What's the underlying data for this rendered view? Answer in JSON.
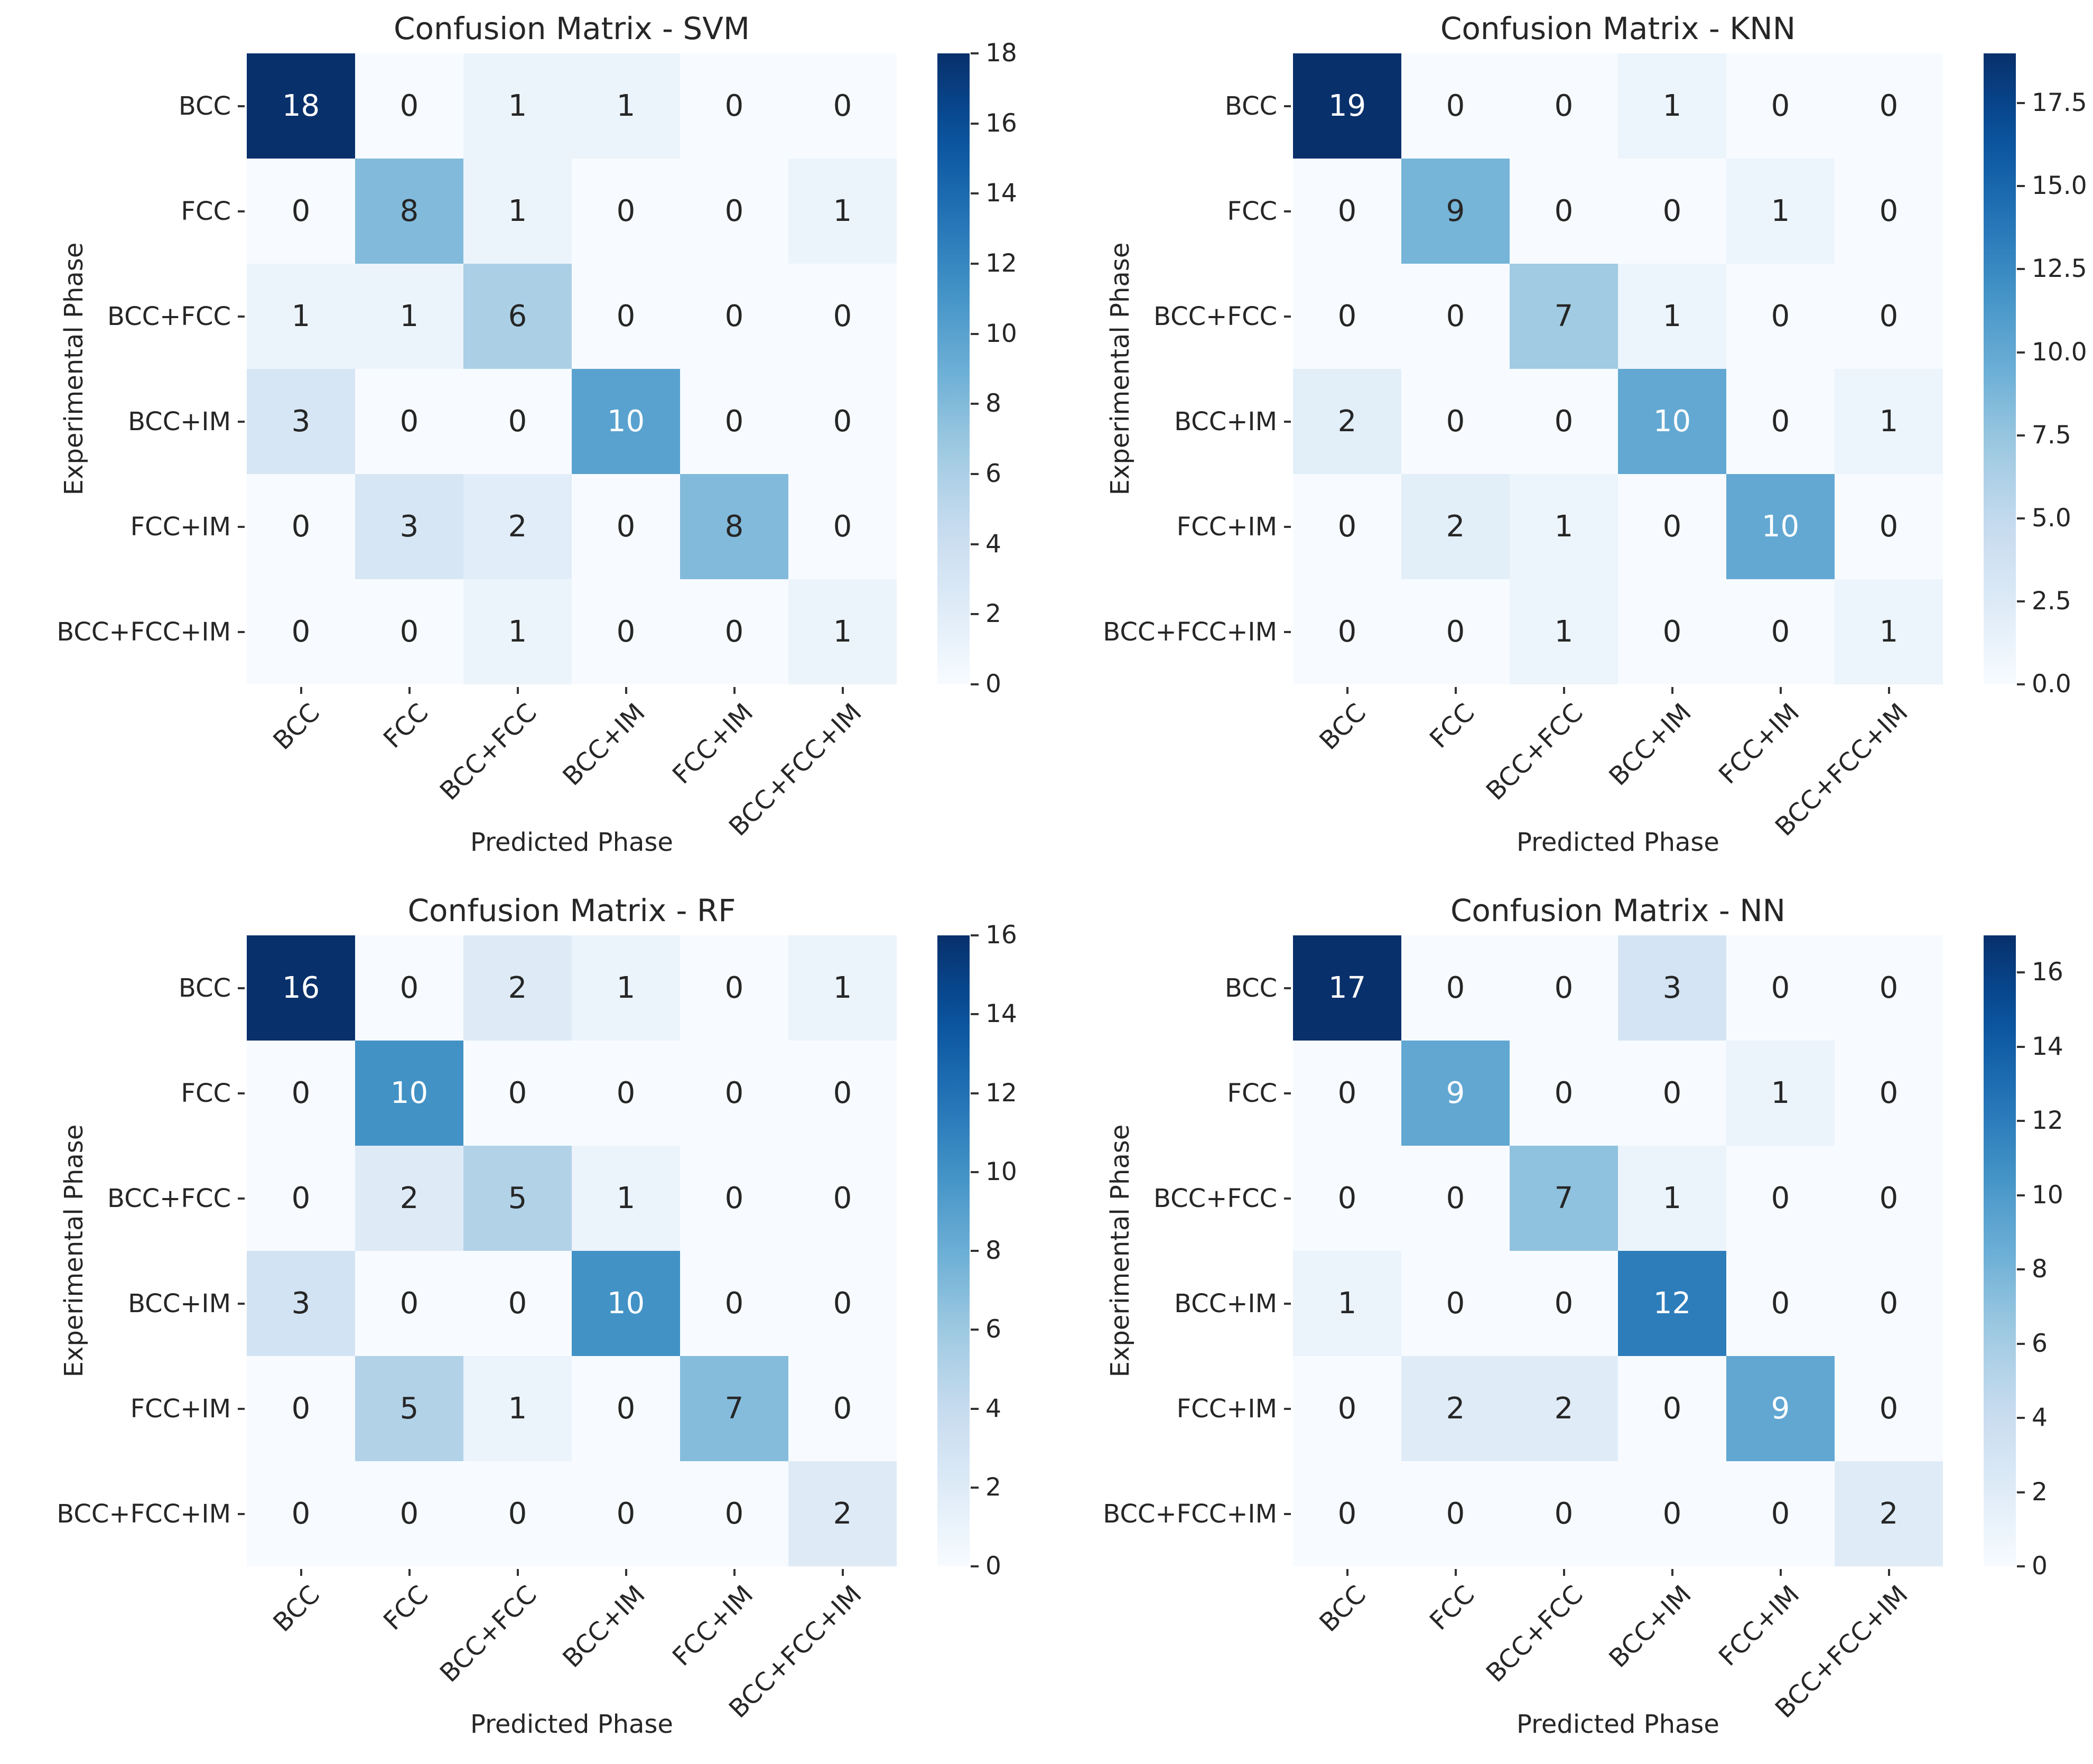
{
  "figure": {
    "background": "#ffffff",
    "annotation_dark_color": "#262626",
    "annotation_light_color": "#ffffff",
    "axis_text_color": "#262626",
    "tick_mark_color": "#333333"
  },
  "chart_data": [
    {
      "id": "svm",
      "type": "heatmap",
      "title": "Confusion Matrix - SVM",
      "xlabel": "Predicted Phase",
      "ylabel": "Experimental Phase",
      "x_categories": [
        "BCC",
        "FCC",
        "BCC+FCC",
        "BCC+IM",
        "FCC+IM",
        "BCC+FCC+IM"
      ],
      "y_categories": [
        "BCC",
        "FCC",
        "BCC+FCC",
        "BCC+IM",
        "FCC+IM",
        "BCC+FCC+IM"
      ],
      "matrix": [
        [
          18,
          0,
          1,
          1,
          0,
          0
        ],
        [
          0,
          8,
          1,
          0,
          0,
          1
        ],
        [
          1,
          1,
          6,
          0,
          0,
          0
        ],
        [
          3,
          0,
          0,
          10,
          0,
          0
        ],
        [
          0,
          3,
          2,
          0,
          8,
          0
        ],
        [
          0,
          0,
          1,
          0,
          0,
          1
        ]
      ],
      "vmin": 0,
      "vmax": 18,
      "colormap": "Blues",
      "colorbar": {
        "position": "right",
        "ticks": [
          0,
          2,
          4,
          6,
          8,
          10,
          12,
          14,
          16,
          18
        ],
        "tick_labels": [
          "0",
          "2",
          "4",
          "6",
          "8",
          "10",
          "12",
          "14",
          "16",
          "18"
        ]
      }
    },
    {
      "id": "knn",
      "type": "heatmap",
      "title": "Confusion Matrix - KNN",
      "xlabel": "Predicted Phase",
      "ylabel": "Experimental Phase",
      "x_categories": [
        "BCC",
        "FCC",
        "BCC+FCC",
        "BCC+IM",
        "FCC+IM",
        "BCC+FCC+IM"
      ],
      "y_categories": [
        "BCC",
        "FCC",
        "BCC+FCC",
        "BCC+IM",
        "FCC+IM",
        "BCC+FCC+IM"
      ],
      "matrix": [
        [
          19,
          0,
          0,
          1,
          0,
          0
        ],
        [
          0,
          9,
          0,
          0,
          1,
          0
        ],
        [
          0,
          0,
          7,
          1,
          0,
          0
        ],
        [
          2,
          0,
          0,
          10,
          0,
          1
        ],
        [
          0,
          2,
          1,
          0,
          10,
          0
        ],
        [
          0,
          0,
          1,
          0,
          0,
          1
        ]
      ],
      "vmin": 0,
      "vmax": 19,
      "colormap": "Blues",
      "colorbar": {
        "position": "right",
        "ticks": [
          0,
          2.5,
          5,
          7.5,
          10,
          12.5,
          15,
          17.5
        ],
        "tick_labels": [
          "0.0",
          "2.5",
          "5.0",
          "7.5",
          "10.0",
          "12.5",
          "15.0",
          "17.5"
        ]
      }
    },
    {
      "id": "rf",
      "type": "heatmap",
      "title": "Confusion Matrix - RF",
      "xlabel": "Predicted Phase",
      "ylabel": "Experimental Phase",
      "x_categories": [
        "BCC",
        "FCC",
        "BCC+FCC",
        "BCC+IM",
        "FCC+IM",
        "BCC+FCC+IM"
      ],
      "y_categories": [
        "BCC",
        "FCC",
        "BCC+FCC",
        "BCC+IM",
        "FCC+IM",
        "BCC+FCC+IM"
      ],
      "matrix": [
        [
          16,
          0,
          2,
          1,
          0,
          1
        ],
        [
          0,
          10,
          0,
          0,
          0,
          0
        ],
        [
          0,
          2,
          5,
          1,
          0,
          0
        ],
        [
          3,
          0,
          0,
          10,
          0,
          0
        ],
        [
          0,
          5,
          1,
          0,
          7,
          0
        ],
        [
          0,
          0,
          0,
          0,
          0,
          2
        ]
      ],
      "vmin": 0,
      "vmax": 16,
      "colormap": "Blues",
      "colorbar": {
        "position": "right",
        "ticks": [
          0,
          2,
          4,
          6,
          8,
          10,
          12,
          14,
          16
        ],
        "tick_labels": [
          "0",
          "2",
          "4",
          "6",
          "8",
          "10",
          "12",
          "14",
          "16"
        ]
      }
    },
    {
      "id": "nn",
      "type": "heatmap",
      "title": "Confusion Matrix - NN",
      "xlabel": "Predicted Phase",
      "ylabel": "Experimental Phase",
      "x_categories": [
        "BCC",
        "FCC",
        "BCC+FCC",
        "BCC+IM",
        "FCC+IM",
        "BCC+FCC+IM"
      ],
      "y_categories": [
        "BCC",
        "FCC",
        "BCC+FCC",
        "BCC+IM",
        "FCC+IM",
        "BCC+FCC+IM"
      ],
      "matrix": [
        [
          17,
          0,
          0,
          3,
          0,
          0
        ],
        [
          0,
          9,
          0,
          0,
          1,
          0
        ],
        [
          0,
          0,
          7,
          1,
          0,
          0
        ],
        [
          1,
          0,
          0,
          12,
          0,
          0
        ],
        [
          0,
          2,
          2,
          0,
          9,
          0
        ],
        [
          0,
          0,
          0,
          0,
          0,
          2
        ]
      ],
      "vmin": 0,
      "vmax": 17,
      "colormap": "Blues",
      "colorbar": {
        "position": "right",
        "ticks": [
          0,
          2,
          4,
          6,
          8,
          10,
          12,
          14,
          16
        ],
        "tick_labels": [
          "0",
          "2",
          "4",
          "6",
          "8",
          "10",
          "12",
          "14",
          "16"
        ]
      }
    }
  ]
}
